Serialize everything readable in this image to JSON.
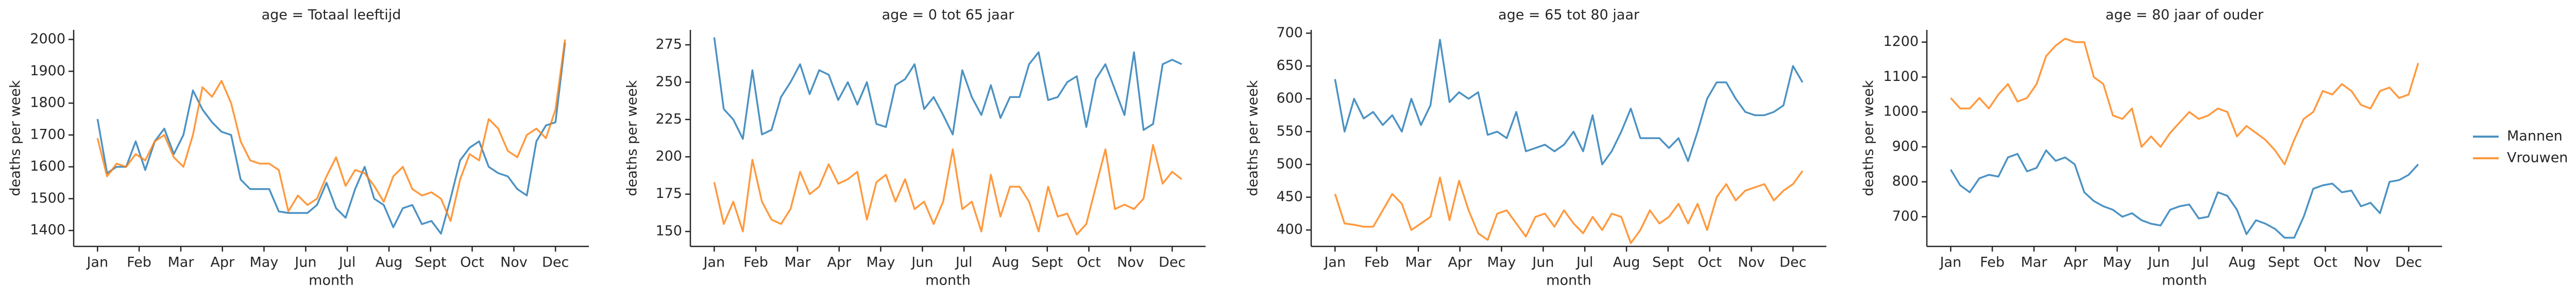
{
  "chart_data": [
    {
      "type": "line",
      "title": "age = Totaal leeftijd",
      "xlabel": "month",
      "ylabel": "deaths per week",
      "x": [
        1,
        2,
        3,
        4,
        5,
        6,
        7,
        8,
        9,
        10,
        11,
        12,
        13,
        14,
        15,
        16,
        17,
        18,
        19,
        20,
        21,
        22,
        23,
        24,
        25,
        26,
        27,
        28,
        29,
        30,
        31,
        32,
        33,
        34,
        35,
        36,
        37,
        38,
        39,
        40,
        41,
        42,
        43,
        44,
        45,
        46,
        47,
        48,
        49,
        50
      ],
      "xlim": [
        -1.5,
        52.5
      ],
      "xticks": [
        {
          "value": 1,
          "label": "Jan"
        },
        {
          "value": 5.36,
          "label": "Feb"
        },
        {
          "value": 9.73,
          "label": "Mar"
        },
        {
          "value": 14.09,
          "label": "Apr"
        },
        {
          "value": 18.45,
          "label": "May"
        },
        {
          "value": 22.82,
          "label": "Jun"
        },
        {
          "value": 27.18,
          "label": "Jul"
        },
        {
          "value": 31.55,
          "label": "Aug"
        },
        {
          "value": 35.91,
          "label": "Sept"
        },
        {
          "value": 40.27,
          "label": "Oct"
        },
        {
          "value": 44.64,
          "label": "Nov"
        },
        {
          "value": 49,
          "label": "Dec"
        }
      ],
      "ylim": [
        1350,
        2030
      ],
      "yticks": [
        1400,
        1500,
        1600,
        1700,
        1800,
        1900,
        2000
      ],
      "legend": "right",
      "series": [
        {
          "name": "Mannen",
          "color": "#1f77b4",
          "values": [
            1750,
            1580,
            1600,
            1600,
            1680,
            1590,
            1680,
            1720,
            1640,
            1700,
            1840,
            1780,
            1740,
            1710,
            1700,
            1560,
            1530,
            1530,
            1530,
            1460,
            1455,
            1455,
            1455,
            1480,
            1550,
            1470,
            1440,
            1530,
            1600,
            1500,
            1480,
            1410,
            1470,
            1480,
            1420,
            1430,
            1390,
            1500,
            1620,
            1660,
            1680,
            1600,
            1580,
            1570,
            1530,
            1510,
            1680,
            1730,
            1740,
            1990
          ]
        },
        {
          "name": "Vrouwen",
          "color": "#ff7f0e",
          "values": [
            1690,
            1570,
            1610,
            1600,
            1640,
            1620,
            1680,
            1700,
            1630,
            1600,
            1700,
            1850,
            1820,
            1870,
            1800,
            1680,
            1620,
            1610,
            1610,
            1590,
            1460,
            1510,
            1480,
            1500,
            1570,
            1630,
            1540,
            1590,
            1580,
            1540,
            1490,
            1570,
            1600,
            1530,
            1510,
            1520,
            1500,
            1430,
            1560,
            1640,
            1620,
            1750,
            1720,
            1650,
            1630,
            1700,
            1720,
            1690,
            1780,
            2000
          ]
        }
      ]
    },
    {
      "type": "line",
      "title": "age = 0 tot 65 jaar",
      "xlabel": "month",
      "ylabel": "deaths per week",
      "x": [
        1,
        2,
        3,
        4,
        5,
        6,
        7,
        8,
        9,
        10,
        11,
        12,
        13,
        14,
        15,
        16,
        17,
        18,
        19,
        20,
        21,
        22,
        23,
        24,
        25,
        26,
        27,
        28,
        29,
        30,
        31,
        32,
        33,
        34,
        35,
        36,
        37,
        38,
        39,
        40,
        41,
        42,
        43,
        44,
        45,
        46,
        47,
        48,
        49,
        50
      ],
      "xlim": [
        -1.5,
        52.5
      ],
      "xticks": [
        {
          "value": 1,
          "label": "Jan"
        },
        {
          "value": 5.36,
          "label": "Feb"
        },
        {
          "value": 9.73,
          "label": "Mar"
        },
        {
          "value": 14.09,
          "label": "Apr"
        },
        {
          "value": 18.45,
          "label": "May"
        },
        {
          "value": 22.82,
          "label": "Jun"
        },
        {
          "value": 27.18,
          "label": "Jul"
        },
        {
          "value": 31.55,
          "label": "Aug"
        },
        {
          "value": 35.91,
          "label": "Sept"
        },
        {
          "value": 40.27,
          "label": "Oct"
        },
        {
          "value": 44.64,
          "label": "Nov"
        },
        {
          "value": 49,
          "label": "Dec"
        }
      ],
      "ylim": [
        140,
        285
      ],
      "yticks": [
        150,
        175,
        200,
        225,
        250,
        275
      ],
      "series": [
        {
          "name": "Mannen",
          "color": "#1f77b4",
          "values": [
            280,
            232,
            225,
            212,
            258,
            215,
            218,
            240,
            250,
            262,
            242,
            258,
            255,
            238,
            250,
            235,
            250,
            222,
            220,
            248,
            252,
            262,
            232,
            240,
            228,
            215,
            258,
            240,
            228,
            248,
            226,
            240,
            240,
            262,
            270,
            238,
            240,
            250,
            254,
            220,
            252,
            262,
            245,
            228,
            270,
            218,
            222,
            262,
            265,
            262
          ]
        },
        {
          "name": "Vrouwen",
          "color": "#ff7f0e",
          "values": [
            183,
            155,
            170,
            150,
            198,
            170,
            158,
            155,
            165,
            190,
            175,
            180,
            195,
            182,
            185,
            190,
            158,
            183,
            188,
            170,
            185,
            165,
            170,
            155,
            170,
            205,
            165,
            170,
            150,
            188,
            160,
            180,
            180,
            170,
            150,
            180,
            160,
            162,
            148,
            155,
            180,
            205,
            165,
            168,
            165,
            172,
            208,
            182,
            190,
            185
          ]
        }
      ]
    },
    {
      "type": "line",
      "title": "age = 65 tot 80 jaar",
      "xlabel": "month",
      "ylabel": "deaths per week",
      "x": [
        1,
        2,
        3,
        4,
        5,
        6,
        7,
        8,
        9,
        10,
        11,
        12,
        13,
        14,
        15,
        16,
        17,
        18,
        19,
        20,
        21,
        22,
        23,
        24,
        25,
        26,
        27,
        28,
        29,
        30,
        31,
        32,
        33,
        34,
        35,
        36,
        37,
        38,
        39,
        40,
        41,
        42,
        43,
        44,
        45,
        46,
        47,
        48,
        49,
        50
      ],
      "xlim": [
        -1.5,
        52.5
      ],
      "xticks": [
        {
          "value": 1,
          "label": "Jan"
        },
        {
          "value": 5.36,
          "label": "Feb"
        },
        {
          "value": 9.73,
          "label": "Mar"
        },
        {
          "value": 14.09,
          "label": "Apr"
        },
        {
          "value": 18.45,
          "label": "May"
        },
        {
          "value": 22.82,
          "label": "Jun"
        },
        {
          "value": 27.18,
          "label": "Jul"
        },
        {
          "value": 31.55,
          "label": "Aug"
        },
        {
          "value": 35.91,
          "label": "Sept"
        },
        {
          "value": 40.27,
          "label": "Oct"
        },
        {
          "value": 44.64,
          "label": "Nov"
        },
        {
          "value": 49,
          "label": "Dec"
        }
      ],
      "ylim": [
        375,
        705
      ],
      "yticks": [
        400,
        450,
        500,
        550,
        600,
        650,
        700
      ],
      "series": [
        {
          "name": "Mannen",
          "color": "#1f77b4",
          "values": [
            630,
            550,
            600,
            570,
            580,
            560,
            575,
            550,
            600,
            560,
            590,
            690,
            595,
            610,
            600,
            610,
            545,
            550,
            540,
            580,
            520,
            525,
            530,
            520,
            530,
            550,
            520,
            575,
            500,
            520,
            550,
            585,
            540,
            540,
            540,
            525,
            540,
            505,
            550,
            600,
            625,
            625,
            600,
            580,
            575,
            575,
            580,
            590,
            650,
            625
          ]
        },
        {
          "name": "Vrouwen",
          "color": "#ff7f0e",
          "values": [
            455,
            410,
            408,
            405,
            405,
            430,
            455,
            440,
            400,
            410,
            420,
            480,
            415,
            475,
            430,
            395,
            385,
            425,
            430,
            410,
            390,
            420,
            425,
            405,
            430,
            410,
            395,
            420,
            400,
            425,
            420,
            380,
            400,
            430,
            410,
            420,
            440,
            410,
            440,
            400,
            450,
            470,
            445,
            460,
            465,
            470,
            445,
            460,
            470,
            490
          ]
        }
      ]
    },
    {
      "type": "line",
      "title": "age = 80 jaar of ouder",
      "xlabel": "month",
      "ylabel": "deaths per week",
      "x": [
        1,
        2,
        3,
        4,
        5,
        6,
        7,
        8,
        9,
        10,
        11,
        12,
        13,
        14,
        15,
        16,
        17,
        18,
        19,
        20,
        21,
        22,
        23,
        24,
        25,
        26,
        27,
        28,
        29,
        30,
        31,
        32,
        33,
        34,
        35,
        36,
        37,
        38,
        39,
        40,
        41,
        42,
        43,
        44,
        45,
        46,
        47,
        48,
        49,
        50
      ],
      "xlim": [
        -1.5,
        52.5
      ],
      "xticks": [
        {
          "value": 1,
          "label": "Jan"
        },
        {
          "value": 5.36,
          "label": "Feb"
        },
        {
          "value": 9.73,
          "label": "Mar"
        },
        {
          "value": 14.09,
          "label": "Apr"
        },
        {
          "value": 18.45,
          "label": "May"
        },
        {
          "value": 22.82,
          "label": "Jun"
        },
        {
          "value": 27.18,
          "label": "Jul"
        },
        {
          "value": 31.55,
          "label": "Aug"
        },
        {
          "value": 35.91,
          "label": "Sept"
        },
        {
          "value": 40.27,
          "label": "Oct"
        },
        {
          "value": 44.64,
          "label": "Nov"
        },
        {
          "value": 49,
          "label": "Dec"
        }
      ],
      "ylim": [
        615,
        1235
      ],
      "yticks": [
        700,
        800,
        900,
        1000,
        1100,
        1200
      ],
      "series": [
        {
          "name": "Mannen",
          "color": "#1f77b4",
          "values": [
            835,
            790,
            770,
            810,
            820,
            815,
            870,
            880,
            830,
            840,
            890,
            860,
            870,
            850,
            770,
            745,
            730,
            720,
            700,
            710,
            690,
            680,
            675,
            720,
            730,
            735,
            695,
            700,
            770,
            760,
            720,
            650,
            690,
            680,
            665,
            640,
            640,
            700,
            780,
            790,
            795,
            770,
            775,
            730,
            740,
            710,
            800,
            805,
            820,
            850
          ]
        },
        {
          "name": "Vrouwen",
          "color": "#ff7f0e",
          "values": [
            1040,
            1010,
            1010,
            1040,
            1010,
            1050,
            1080,
            1030,
            1040,
            1080,
            1160,
            1190,
            1210,
            1200,
            1200,
            1100,
            1080,
            990,
            980,
            1010,
            900,
            930,
            900,
            940,
            970,
            1000,
            980,
            990,
            1010,
            1000,
            930,
            960,
            940,
            920,
            890,
            850,
            920,
            980,
            1000,
            1060,
            1050,
            1080,
            1060,
            1020,
            1010,
            1060,
            1070,
            1040,
            1050,
            1140
          ]
        }
      ]
    }
  ]
}
